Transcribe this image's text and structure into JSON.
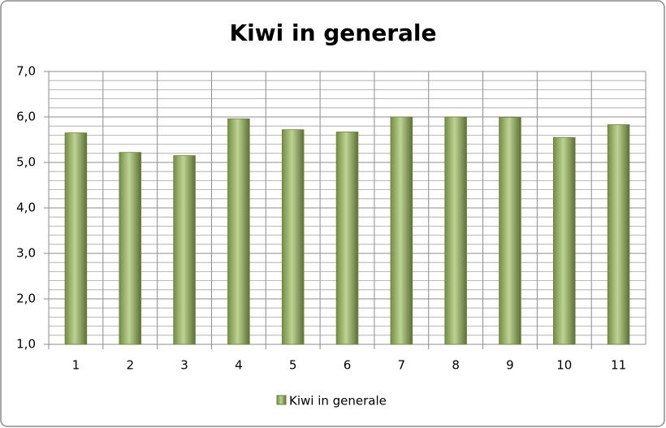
{
  "chart_data": {
    "type": "bar",
    "title": "Kiwi in generale",
    "categories": [
      "1",
      "2",
      "3",
      "4",
      "5",
      "6",
      "7",
      "8",
      "9",
      "10",
      "11"
    ],
    "series": [
      {
        "name": "Kiwi in generale",
        "color": "#9bbb59",
        "values": [
          5.65,
          5.22,
          5.15,
          5.96,
          5.72,
          5.67,
          6.0,
          6.0,
          5.99,
          5.55,
          5.83
        ]
      }
    ],
    "ylim": [
      1,
      7
    ],
    "yticks": [
      {
        "value": 1,
        "label": "1,0"
      },
      {
        "value": 2,
        "label": "2,0"
      },
      {
        "value": 3,
        "label": "3,0"
      },
      {
        "value": 4,
        "label": "4,0"
      },
      {
        "value": 5,
        "label": "5,0"
      },
      {
        "value": 6,
        "label": "6,0"
      },
      {
        "value": 7,
        "label": "7,0"
      }
    ],
    "yminorticks": [
      1.2,
      1.4,
      1.6,
      1.8,
      2.2,
      2.4,
      2.6,
      2.8,
      3.2,
      3.4,
      3.6,
      3.8,
      4.2,
      4.4,
      4.6,
      4.8,
      5.2,
      5.4,
      5.6,
      5.8,
      6.2,
      6.4,
      6.6,
      6.8
    ],
    "grid": true,
    "legend": "bottom"
  }
}
